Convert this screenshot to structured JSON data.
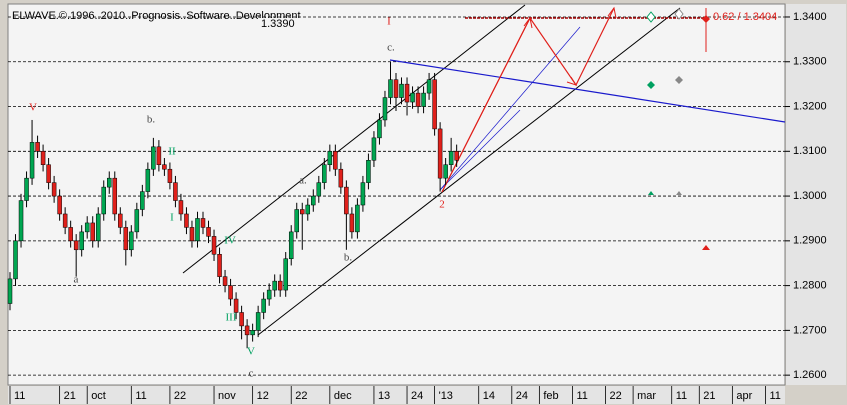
{
  "chart_data": {
    "type": "candlestick",
    "title": "ELWAVE.©.1996..2010..Prognosis..Software..Development",
    "open": [
      1.276,
      1.2815,
      1.29,
      1.299,
      1.304,
      1.312,
      1.31,
      1.307,
      1.303,
      1.3,
      1.296,
      1.293,
      1.29,
      1.288,
      1.292,
      1.294,
      1.29,
      1.296,
      1.302,
      1.304,
      1.296,
      1.293,
      1.288,
      1.292,
      1.297,
      1.301,
      1.306,
      1.311,
      1.307,
      1.306,
      1.303,
      1.299,
      1.296,
      1.293,
      1.29,
      1.295,
      1.293,
      1.291,
      1.287,
      1.282,
      1.28,
      1.277,
      1.274,
      1.271,
      1.269,
      1.27,
      1.274,
      1.277,
      1.279,
      1.281,
      1.279,
      1.286,
      1.292,
      1.297,
      1.296,
      1.298,
      1.3,
      1.303,
      1.307,
      1.31,
      1.306,
      1.302,
      1.296,
      1.292,
      1.298,
      1.303,
      1.308,
      1.313,
      1.317,
      1.322,
      1.326,
      1.322,
      1.325,
      1.321,
      1.323,
      1.32,
      1.323,
      1.326,
      1.315,
      1.304,
      1.307,
      1.31
    ],
    "high": [
      1.283,
      1.2915,
      1.3005,
      1.3055,
      1.317,
      1.3135,
      1.3115,
      1.3085,
      1.3045,
      1.3015,
      1.2975,
      1.2945,
      1.2915,
      1.2935,
      1.2955,
      1.2955,
      1.2975,
      1.3035,
      1.3055,
      1.3055,
      1.2975,
      1.2945,
      1.2935,
      1.2985,
      1.3025,
      1.3075,
      1.313,
      1.3125,
      1.3085,
      1.3075,
      1.3045,
      1.3005,
      1.2975,
      1.2945,
      1.2965,
      1.2965,
      1.2945,
      1.2925,
      1.2885,
      1.2835,
      1.2815,
      1.2785,
      1.2755,
      1.2725,
      1.2715,
      1.2755,
      1.2785,
      1.2805,
      1.2825,
      1.2825,
      1.2875,
      1.2935,
      1.2985,
      1.2985,
      1.2995,
      1.3015,
      1.3045,
      1.3085,
      1.3115,
      1.3115,
      1.3075,
      1.3035,
      1.2975,
      1.2995,
      1.3045,
      1.3095,
      1.3145,
      1.3185,
      1.3235,
      1.33,
      1.3275,
      1.3265,
      1.3265,
      1.3245,
      1.3245,
      1.3245,
      1.3275,
      1.3275,
      1.3165,
      1.3085,
      1.313,
      1.3115
    ],
    "low": [
      1.2745,
      1.28,
      1.2885,
      1.2975,
      1.3025,
      1.3085,
      1.3055,
      1.3015,
      1.2985,
      1.2945,
      1.2915,
      1.2885,
      1.282,
      1.2865,
      1.2905,
      1.2885,
      1.2885,
      1.2945,
      1.3005,
      1.2945,
      1.2915,
      1.2845,
      1.2865,
      1.2905,
      1.2955,
      1.2995,
      1.3045,
      1.3055,
      1.3045,
      1.3015,
      1.2975,
      1.2945,
      1.2915,
      1.2885,
      1.2885,
      1.2915,
      1.2895,
      1.2855,
      1.2805,
      1.2785,
      1.2755,
      1.2725,
      1.268,
      1.266,
      1.2675,
      1.2685,
      1.2725,
      1.2755,
      1.2775,
      1.2775,
      1.2775,
      1.2845,
      1.2905,
      1.288,
      1.2945,
      1.2965,
      1.2985,
      1.3015,
      1.3055,
      1.3045,
      1.3005,
      1.288,
      1.2905,
      1.2905,
      1.2965,
      1.3015,
      1.3065,
      1.3115,
      1.3155,
      1.3205,
      1.319,
      1.3205,
      1.318,
      1.3195,
      1.3185,
      1.3185,
      1.3215,
      1.3135,
      1.301,
      1.3025,
      1.3055,
      1.3065
    ],
    "close": [
      1.2815,
      1.29,
      1.299,
      1.304,
      1.312,
      1.31,
      1.307,
      1.303,
      1.3,
      1.296,
      1.293,
      1.29,
      1.288,
      1.292,
      1.294,
      1.29,
      1.296,
      1.302,
      1.304,
      1.296,
      1.293,
      1.288,
      1.292,
      1.297,
      1.301,
      1.306,
      1.311,
      1.307,
      1.306,
      1.303,
      1.299,
      1.296,
      1.293,
      1.29,
      1.295,
      1.293,
      1.291,
      1.287,
      1.282,
      1.28,
      1.277,
      1.274,
      1.271,
      1.269,
      1.27,
      1.274,
      1.277,
      1.279,
      1.281,
      1.279,
      1.286,
      1.292,
      1.297,
      1.296,
      1.298,
      1.3,
      1.303,
      1.307,
      1.31,
      1.306,
      1.302,
      1.296,
      1.292,
      1.298,
      1.303,
      1.308,
      1.313,
      1.317,
      1.322,
      1.326,
      1.322,
      1.325,
      1.321,
      1.323,
      1.32,
      1.323,
      1.326,
      1.315,
      1.304,
      1.307,
      1.31,
      1.308
    ],
    "up_color": "#00a651",
    "down_color": "#e0201b",
    "xlim": [
      0,
      140
    ],
    "xticks": [
      {
        "value": 0,
        "label": "11"
      },
      {
        "value": 9,
        "label": "21"
      },
      {
        "value": 14,
        "label": "oct"
      },
      {
        "value": 22,
        "label": "11"
      },
      {
        "value": 29,
        "label": "22"
      },
      {
        "value": 37,
        "label": "nov"
      },
      {
        "value": 44,
        "label": "12"
      },
      {
        "value": 51,
        "label": "22"
      },
      {
        "value": 58,
        "label": "dec"
      },
      {
        "value": 66,
        "label": "13"
      },
      {
        "value": 72,
        "label": "24"
      },
      {
        "value": 77,
        "label": "'13"
      },
      {
        "value": 85,
        "label": "14"
      },
      {
        "value": 91,
        "label": "24"
      },
      {
        "value": 96,
        "label": "feb"
      },
      {
        "value": 102,
        "label": "11"
      },
      {
        "value": 108,
        "label": "22"
      },
      {
        "value": 113,
        "label": "mar"
      },
      {
        "value": 120,
        "label": "11"
      },
      {
        "value": 125,
        "label": "21"
      },
      {
        "value": 131,
        "label": "apr"
      },
      {
        "value": 137,
        "label": "11"
      }
    ],
    "ylim": [
      1.2578,
      1.3429
    ],
    "yticks": [
      {
        "value": 1.26,
        "label": "1.2600"
      },
      {
        "value": 1.27,
        "label": "1.2700"
      },
      {
        "value": 1.28,
        "label": "1.2800"
      },
      {
        "value": 1.29,
        "label": "1.2900"
      },
      {
        "value": 1.3,
        "label": "1.3000"
      },
      {
        "value": 1.31,
        "label": "1.3100"
      },
      {
        "value": 1.32,
        "label": "1.3200"
      },
      {
        "value": 1.33,
        "label": "1.3300"
      },
      {
        "value": 1.34,
        "label": "1.3400"
      }
    ],
    "grid": true,
    "annotations": [
      "1.3390",
      "0.62 / 1.3404"
    ],
    "wave_labels": [
      "V",
      "b.",
      "II",
      "I",
      "a",
      "IV",
      "III",
      "V",
      "c",
      "a.",
      "b.",
      "c.",
      "I",
      "2"
    ]
  }
}
